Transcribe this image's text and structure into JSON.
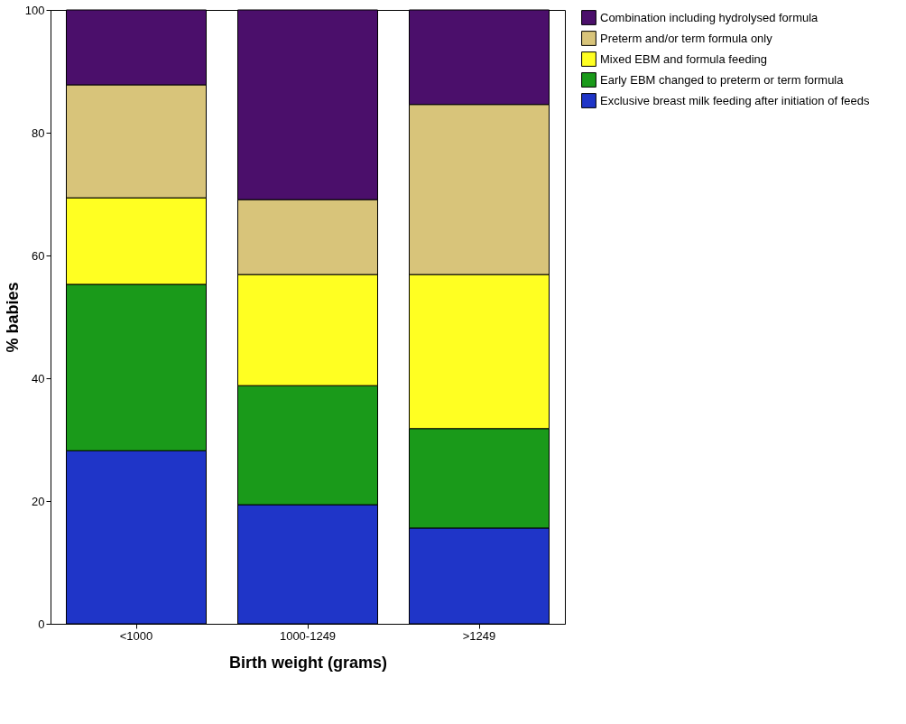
{
  "chart_data": {
    "type": "bar",
    "stacked": true,
    "xlabel": "Birth weight (grams)",
    "ylabel": "% babies",
    "categories": [
      "<1000",
      "1000-1249",
      ">1249"
    ],
    "series": [
      {
        "name": "Exclusive breast milk feeding after initiation of feeds",
        "color": "#1f35c8",
        "values": [
          28.2,
          19.4,
          15.6
        ]
      },
      {
        "name": "Early EBM changed to preterm or term formula",
        "color": "#1a9a1a",
        "values": [
          27.1,
          19.4,
          16.2
        ]
      },
      {
        "name": "Mixed EBM and formula feeding",
        "color": "#ffff22",
        "values": [
          14.1,
          18.1,
          25.1
        ]
      },
      {
        "name": "Preterm and/or term formula only",
        "color": "#d8c47a",
        "values": [
          18.4,
          12.2,
          27.7
        ]
      },
      {
        "name": "Combination including hydrolysed formula",
        "color": "#4b0f6b",
        "values": [
          12.2,
          30.9,
          15.4
        ]
      }
    ],
    "ylim": [
      0,
      100
    ],
    "yticks": [
      0,
      20,
      40,
      60,
      80,
      100
    ],
    "grid": false,
    "legend": "right"
  }
}
